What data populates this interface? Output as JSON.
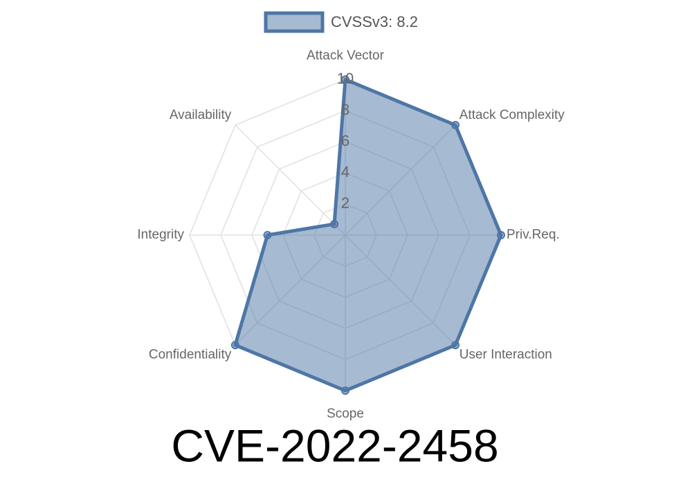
{
  "chart_data": {
    "type": "radar",
    "title": "CVE-2022-2458",
    "categories": [
      "Attack Vector",
      "Attack Complexity",
      "Priv.Req.",
      "User Interaction",
      "Scope",
      "Confidentiality",
      "Integrity",
      "Availability"
    ],
    "series": [
      {
        "name": "CVSSv3: 8.2",
        "color": "#4e76a6",
        "values": [
          10,
          10,
          10,
          10,
          10,
          10,
          5,
          1
        ]
      }
    ],
    "rlim": [
      0,
      10
    ],
    "rticks": [
      2,
      4,
      6,
      8,
      10
    ],
    "grid": true,
    "legend": "top"
  }
}
